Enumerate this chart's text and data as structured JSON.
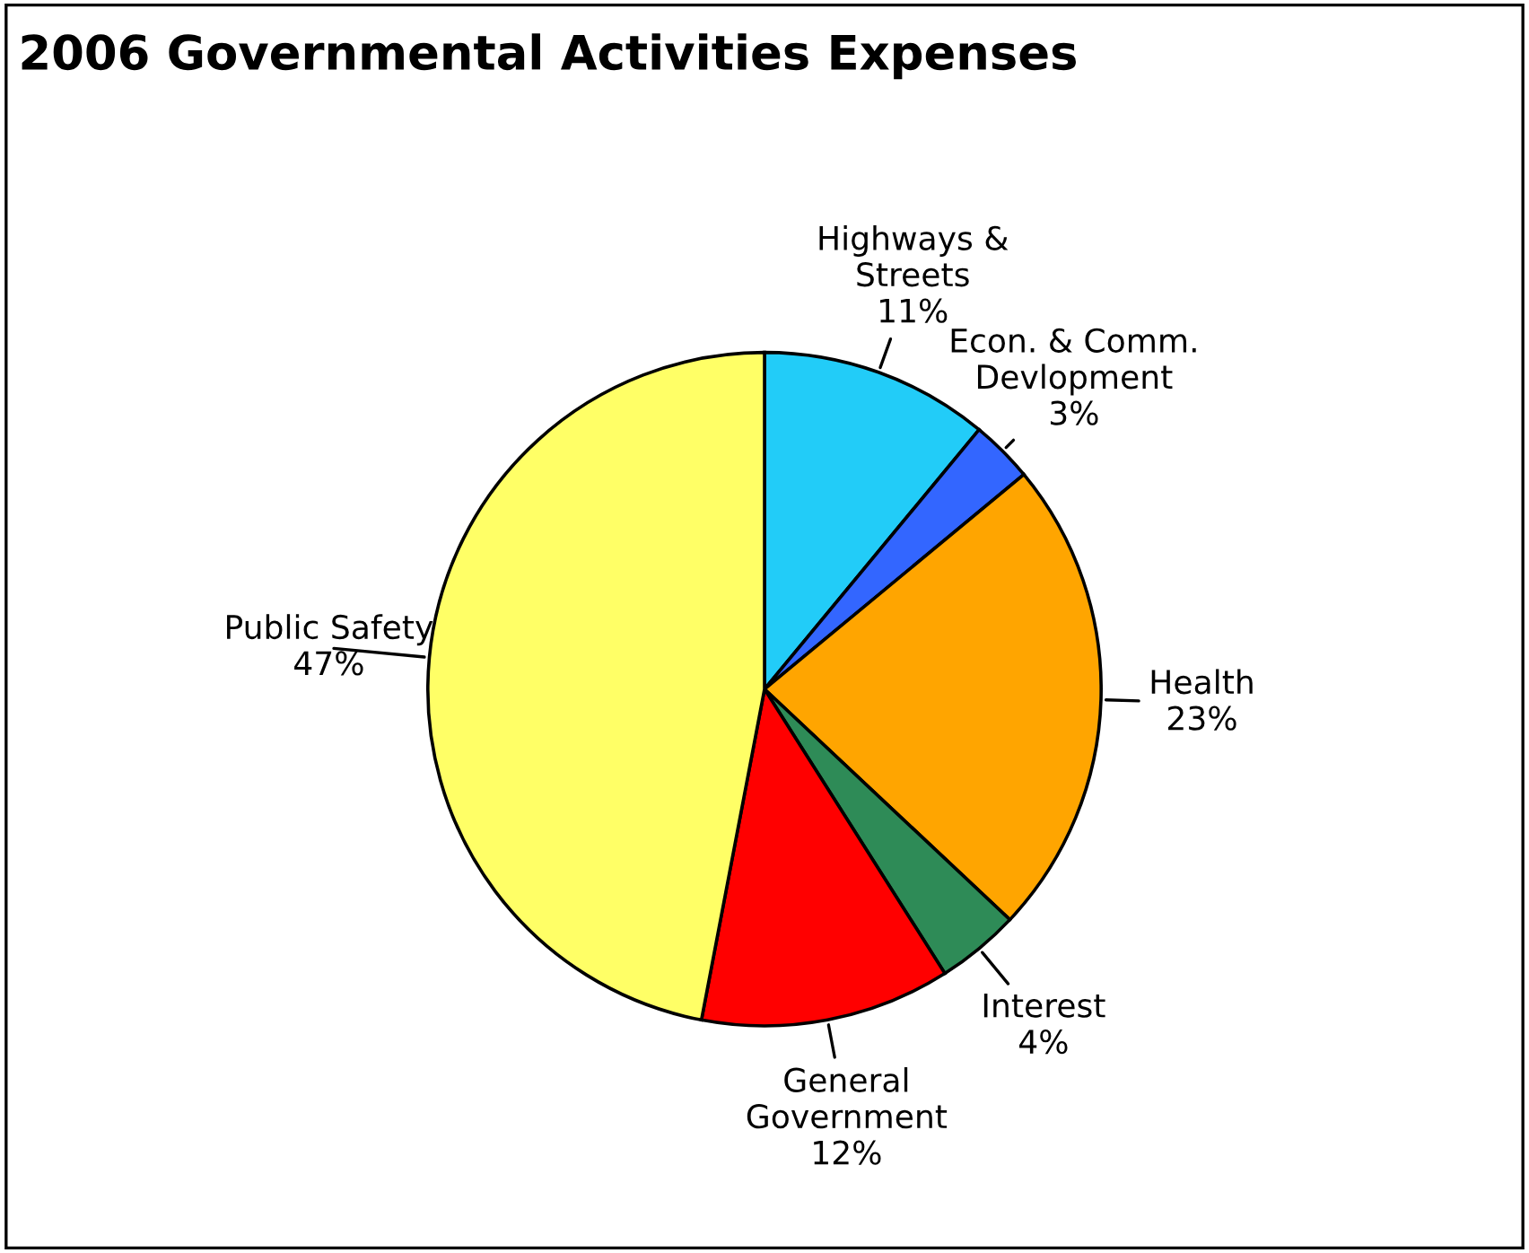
{
  "chart_data": {
    "type": "pie",
    "title": "2006 Governmental Activities Expenses",
    "categories": [
      "Highways &\nStreets",
      "Econ. & Comm.\nDevlopment",
      "Health",
      "Interest",
      "General\nGovernment",
      "Public Safety"
    ],
    "values": [
      11,
      3,
      23,
      4,
      12,
      47
    ],
    "value_labels": [
      "11%",
      "3%",
      "23%",
      "4%",
      "12%",
      "47%"
    ],
    "colors": [
      "#22ccf8",
      "#3366ff",
      "#ffa500",
      "#2e8b57",
      "#ff0000",
      "#ffff66"
    ],
    "legend": false
  }
}
